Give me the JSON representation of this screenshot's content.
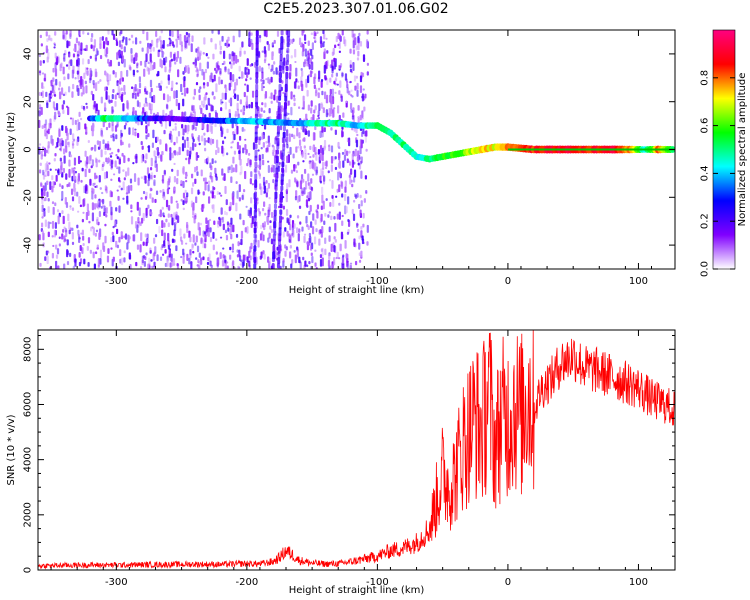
{
  "title": "C2E5.2023.307.01.06.G02",
  "chart_data": [
    {
      "type": "heatmap",
      "xlabel": "Height of straight line (km)",
      "ylabel": "Frequency (Hz)",
      "xlim": [
        -360,
        128
      ],
      "ylim": [
        -50,
        50
      ],
      "xticks": [
        -300,
        -200,
        -100,
        0,
        100
      ],
      "yticks": [
        -40,
        -20,
        0,
        20,
        40
      ],
      "colorbar": {
        "label": "Normalized spectral amplitude",
        "range": [
          0,
          1
        ],
        "ticks": [
          "0.0",
          "0.2",
          "0.4",
          "0.6",
          "0.8"
        ],
        "colormap": [
          "#ffffff",
          "#8000ff",
          "#0000ff",
          "#00ffff",
          "#00ff00",
          "#ffff00",
          "#ff0000",
          "#ff0080"
        ]
      },
      "noise_region": [
        -360,
        -108
      ],
      "vertical_streaks": [
        {
          "x0": -192,
          "x1": -194,
          "note": "dense"
        },
        {
          "x0": -173,
          "x1": -180
        },
        {
          "x0": -168,
          "x1": -176
        }
      ],
      "signal_line": [
        {
          "x": -320,
          "y": 13,
          "amp": 0.25
        },
        {
          "x": -310,
          "y": 13,
          "amp": 0.55
        },
        {
          "x": -260,
          "y": 13,
          "amp": 0.15
        },
        {
          "x": -220,
          "y": 12,
          "amp": 0.3
        },
        {
          "x": -205,
          "y": 12,
          "amp": 0.4
        },
        {
          "x": -160,
          "y": 11,
          "amp": 0.35
        },
        {
          "x": -150,
          "y": 11,
          "amp": 0.45
        },
        {
          "x": -130,
          "y": 11,
          "amp": 0.5
        },
        {
          "x": -115,
          "y": 10,
          "amp": 0.4
        },
        {
          "x": -100,
          "y": 10,
          "amp": 0.55
        },
        {
          "x": -90,
          "y": 7,
          "amp": 0.5
        },
        {
          "x": -80,
          "y": 2,
          "amp": 0.5
        },
        {
          "x": -70,
          "y": -3,
          "amp": 0.45
        },
        {
          "x": -60,
          "y": -4,
          "amp": 0.5
        },
        {
          "x": -50,
          "y": -3,
          "amp": 0.55
        },
        {
          "x": -40,
          "y": -2,
          "amp": 0.6
        },
        {
          "x": -30,
          "y": -1,
          "amp": 0.65
        },
        {
          "x": -20,
          "y": 0,
          "amp": 0.75
        },
        {
          "x": -10,
          "y": 1,
          "amp": 0.7
        },
        {
          "x": 0,
          "y": 1,
          "amp": 0.8
        },
        {
          "x": 20,
          "y": 0,
          "amp": 0.85
        },
        {
          "x": 40,
          "y": 0,
          "amp": 0.9
        },
        {
          "x": 60,
          "y": 0,
          "amp": 0.85
        },
        {
          "x": 80,
          "y": 0,
          "amp": 0.9
        },
        {
          "x": 95,
          "y": 0,
          "amp": 0.75
        },
        {
          "x": 105,
          "y": 0,
          "amp": 0.4
        },
        {
          "x": 115,
          "y": 0,
          "amp": 0.8
        },
        {
          "x": 128,
          "y": 0,
          "amp": 0.5
        }
      ]
    },
    {
      "type": "line",
      "xlabel": "Height of straight line (km)",
      "ylabel": "SNR (10 * v/v)",
      "xlim": [
        -360,
        128
      ],
      "ylim": [
        0,
        8700
      ],
      "xticks": [
        -300,
        -200,
        -100,
        0,
        100
      ],
      "yticks": [
        0,
        2000,
        4000,
        6000,
        8000
      ],
      "series": [
        {
          "color": "#ff0000",
          "x": [
            -360,
            -340,
            -320,
            -300,
            -280,
            -260,
            -240,
            -220,
            -200,
            -190,
            -180,
            -175,
            -170,
            -165,
            -160,
            -150,
            -140,
            -130,
            -120,
            -110,
            -100,
            -90,
            -80,
            -70,
            -60,
            -55,
            -50,
            -45,
            -40,
            -35,
            -30,
            -25,
            -20,
            -15,
            -10,
            -5,
            0,
            5,
            10,
            15,
            20,
            25,
            30,
            35,
            40,
            45,
            50,
            55,
            60,
            70,
            80,
            90,
            100,
            110,
            120,
            128
          ],
          "y": [
            150,
            170,
            180,
            180,
            190,
            200,
            210,
            200,
            230,
            220,
            300,
            450,
            700,
            550,
            350,
            250,
            220,
            230,
            300,
            400,
            500,
            700,
            800,
            1000,
            1500,
            2500,
            3500,
            3000,
            3500,
            4500,
            5000,
            5500,
            5000,
            6500,
            4500,
            5500,
            5500,
            6000,
            5500,
            6500,
            5800,
            6500,
            6800,
            7000,
            7500,
            7600,
            7800,
            7500,
            7300,
            7200,
            7000,
            6800,
            6600,
            6200,
            6000,
            5800
          ]
        }
      ]
    }
  ]
}
